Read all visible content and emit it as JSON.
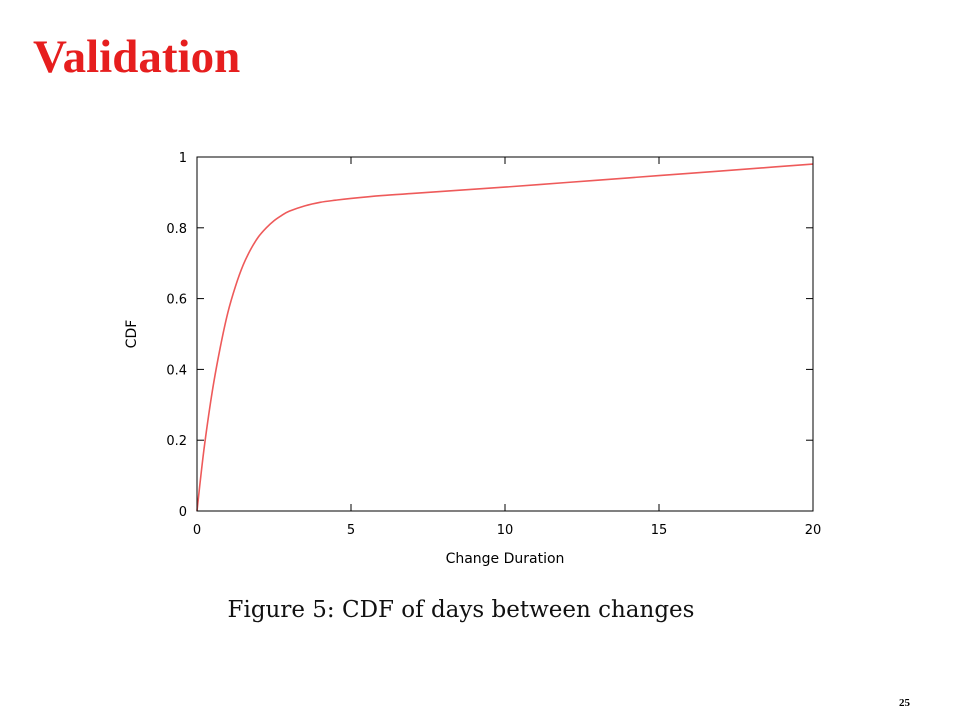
{
  "slide": {
    "title": "Validation",
    "title_color": "#e61e1e",
    "caption": "Figure 5: CDF of days between changes",
    "page_number": "25"
  },
  "chart_data": {
    "type": "line",
    "title": "",
    "xlabel": "Change Duration",
    "ylabel": "CDF",
    "xlim": [
      0,
      20
    ],
    "ylim": [
      0,
      1
    ],
    "xticks": [
      "0",
      "5",
      "10",
      "15",
      "20"
    ],
    "yticks": [
      "0",
      "0.2",
      "0.4",
      "0.6",
      "0.8",
      "1"
    ],
    "grid": false,
    "legend": "none",
    "series": [
      {
        "color": "#ee5a5a",
        "x": [
          0,
          0.1,
          0.25,
          0.5,
          0.75,
          1.0,
          1.25,
          1.5,
          1.75,
          2.0,
          2.25,
          2.5,
          2.75,
          3.0,
          3.5,
          4.0,
          4.5,
          5.0,
          6.0,
          7.0,
          8.0,
          10.0,
          12.0,
          14.0,
          16.0,
          18.0,
          20.0
        ],
        "y": [
          0.0,
          0.08,
          0.19,
          0.34,
          0.46,
          0.56,
          0.635,
          0.695,
          0.74,
          0.775,
          0.8,
          0.82,
          0.835,
          0.847,
          0.862,
          0.872,
          0.878,
          0.883,
          0.891,
          0.897,
          0.903,
          0.915,
          0.928,
          0.941,
          0.954,
          0.967,
          0.98
        ]
      }
    ]
  }
}
